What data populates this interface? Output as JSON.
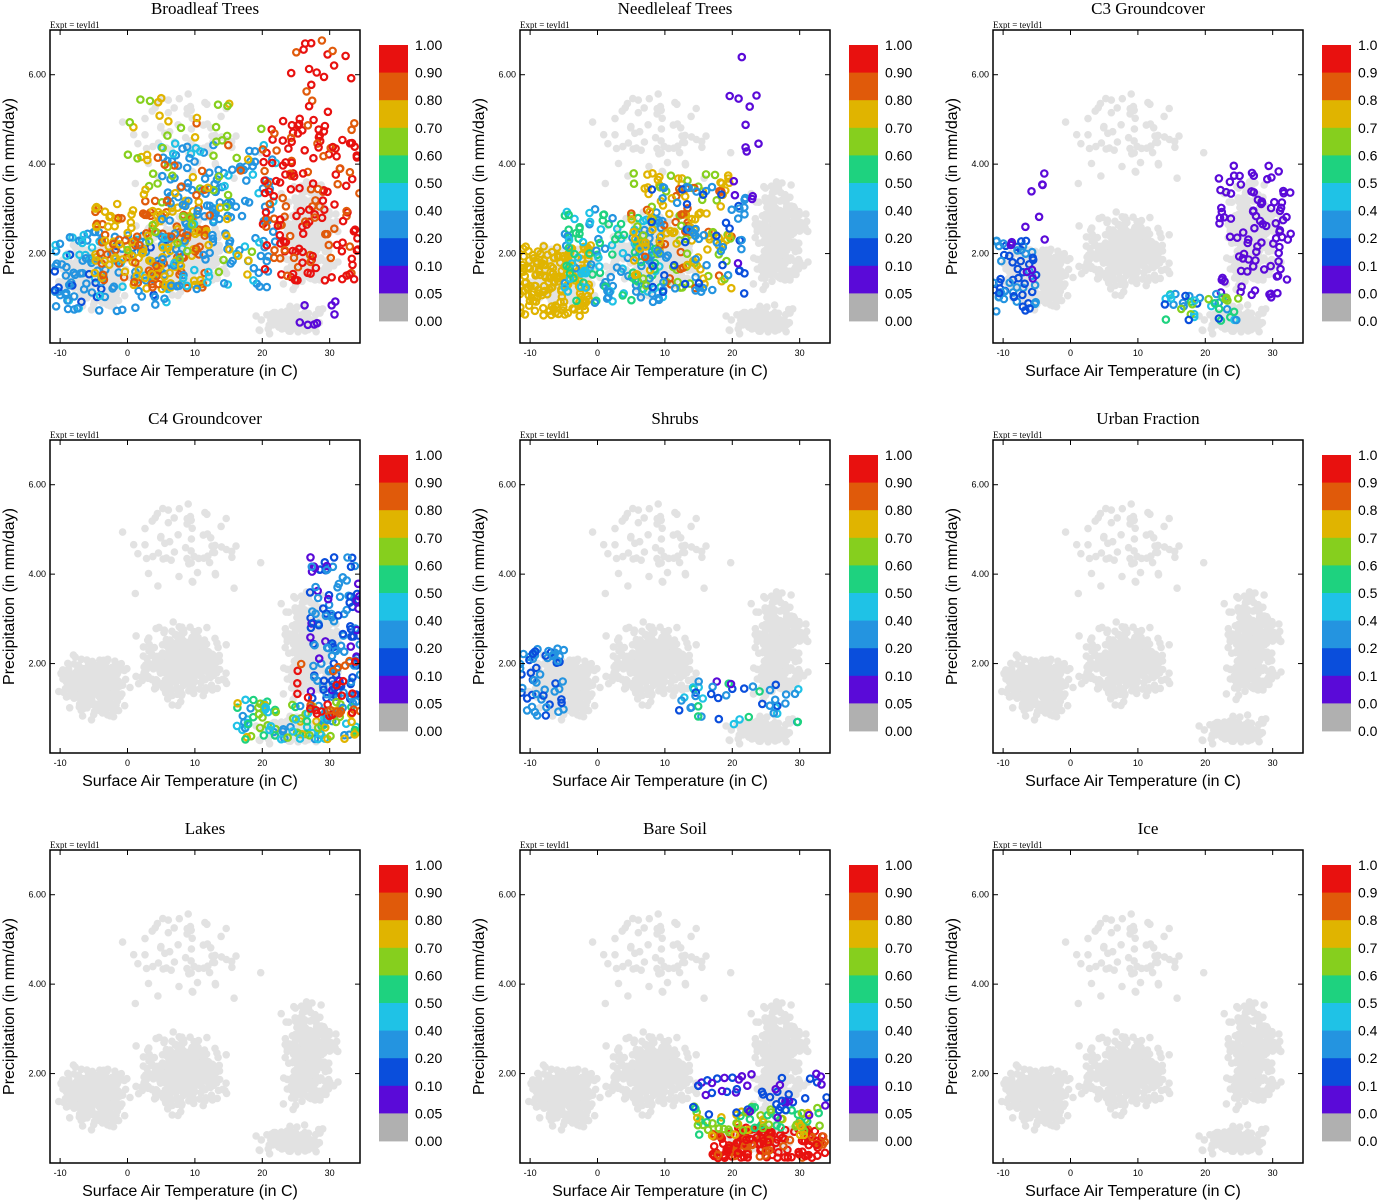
{
  "figure": {
    "expt_label": "Expt = teyId1",
    "xlabel": "Surface Air Temperature (in C)",
    "ylabel": "Precipitation (in mm/day)",
    "xlim": [
      -11.5,
      34.5
    ],
    "ylim": [
      0.0,
      7.0
    ],
    "x_ticks": [
      "-10",
      "0",
      "10",
      "20",
      "30"
    ],
    "x_tick_values": [
      -10,
      0,
      10,
      20,
      30
    ],
    "y_ticks": [
      "2.00",
      "4.00",
      "6.00"
    ],
    "y_tick_values": [
      2,
      4,
      6
    ],
    "colorbar": {
      "labels": [
        "1.00",
        "0.90",
        "0.80",
        "0.70",
        "0.60",
        "0.50",
        "0.40",
        "0.20",
        "0.10",
        "0.05",
        "0.00"
      ],
      "colors": [
        "#e8110f",
        "#e05a0a",
        "#e0b400",
        "#86cf1e",
        "#1ed27f",
        "#1fc2e6",
        "#2494e0",
        "#0a4edc",
        "#5a0ad8",
        "#b0b0b0"
      ]
    },
    "background_color": "#e2e2e2",
    "zero_fraction_color": "#b0b0b0"
  },
  "chart_data": [
    {
      "type": "scatter",
      "title": "Broadleaf Trees",
      "xlabel": "Surface Air Temperature (in C)",
      "ylabel": "Precipitation (in mm/day)",
      "xlim": [
        -11.5,
        34.5
      ],
      "ylim": [
        0,
        7
      ],
      "clusters": [
        {
          "x_range": [
            -11,
            6
          ],
          "y_range": [
            0.7,
            2.5
          ],
          "fraction_range": [
            0.15,
            0.45
          ],
          "count": 130
        },
        {
          "x_range": [
            -5,
            12
          ],
          "y_range": [
            1.2,
            3.2
          ],
          "fraction_range": [
            0.72,
            0.85
          ],
          "count": 170
        },
        {
          "x_range": [
            5,
            22
          ],
          "y_range": [
            1.2,
            4.5
          ],
          "fraction_range": [
            0.2,
            0.45
          ],
          "count": 160
        },
        {
          "x_range": [
            0,
            20
          ],
          "y_range": [
            1.5,
            5.5
          ],
          "fraction_range": [
            0.6,
            0.85
          ],
          "count": 90
        },
        {
          "x_range": [
            20,
            34.5
          ],
          "y_range": [
            1.4,
            5.0
          ],
          "fraction_range": [
            0.85,
            1.0
          ],
          "count": 170
        },
        {
          "x_range": [
            24,
            34
          ],
          "y_range": [
            5.0,
            6.8
          ],
          "fraction_range": [
            0.85,
            1.0
          ],
          "count": 20
        },
        {
          "x_range": [
            24,
            31
          ],
          "y_range": [
            0.4,
            1.0
          ],
          "fraction_range": [
            0.05,
            0.1
          ],
          "count": 8
        }
      ]
    },
    {
      "type": "scatter",
      "title": "Needleleaf Trees",
      "xlabel": "Surface Air Temperature (in C)",
      "ylabel": "Precipitation (in mm/day)",
      "xlim": [
        -11.5,
        34.5
      ],
      "ylim": [
        0,
        7
      ],
      "clusters": [
        {
          "x_range": [
            -11.5,
            -1
          ],
          "y_range": [
            0.6,
            2.2
          ],
          "fraction_range": [
            0.7,
            0.75
          ],
          "count": 160
        },
        {
          "x_range": [
            -5,
            10
          ],
          "y_range": [
            0.9,
            3.0
          ],
          "fraction_range": [
            0.3,
            0.6
          ],
          "count": 150
        },
        {
          "x_range": [
            5,
            20
          ],
          "y_range": [
            1.2,
            3.8
          ],
          "fraction_range": [
            0.65,
            0.85
          ],
          "count": 150
        },
        {
          "x_range": [
            8,
            22
          ],
          "y_range": [
            1.0,
            3.5
          ],
          "fraction_range": [
            0.15,
            0.3
          ],
          "count": 70
        },
        {
          "x_range": [
            19,
            25
          ],
          "y_range": [
            1.2,
            6.5
          ],
          "fraction_range": [
            0.05,
            0.1
          ],
          "count": 14
        }
      ]
    },
    {
      "type": "scatter",
      "title": "C3 Groundcover",
      "xlabel": "Surface Air Temperature (in C)",
      "ylabel": "Precipitation (in mm/day)",
      "xlim": [
        -11.5,
        34.5
      ],
      "ylim": [
        0,
        7
      ],
      "clusters": [
        {
          "x_range": [
            -11.5,
            -5
          ],
          "y_range": [
            0.7,
            2.3
          ],
          "fraction_range": [
            0.1,
            0.3
          ],
          "count": 60
        },
        {
          "x_range": [
            -9,
            -3
          ],
          "y_range": [
            1.0,
            3.8
          ],
          "fraction_range": [
            0.05,
            0.1
          ],
          "count": 12
        },
        {
          "x_range": [
            22,
            33
          ],
          "y_range": [
            1.0,
            4.0
          ],
          "fraction_range": [
            0.05,
            0.1
          ],
          "count": 90
        },
        {
          "x_range": [
            14,
            25
          ],
          "y_range": [
            0.5,
            1.1
          ],
          "fraction_range": [
            0.1,
            0.7
          ],
          "count": 40
        }
      ]
    },
    {
      "type": "scatter",
      "title": "C4 Groundcover",
      "xlabel": "Surface Air Temperature (in C)",
      "ylabel": "Precipitation (in mm/day)",
      "xlim": [
        -11.5,
        34.5
      ],
      "ylim": [
        0,
        7
      ],
      "clusters": [
        {
          "x_range": [
            27,
            34.5
          ],
          "y_range": [
            1.2,
            4.4
          ],
          "fraction_range": [
            0.05,
            0.3
          ],
          "count": 130
        },
        {
          "x_range": [
            16,
            34
          ],
          "y_range": [
            0.3,
            1.2
          ],
          "fraction_range": [
            0.3,
            0.75
          ],
          "count": 110
        },
        {
          "x_range": [
            25,
            34.5
          ],
          "y_range": [
            0.8,
            2.1
          ],
          "fraction_range": [
            0.85,
            1.0
          ],
          "count": 30
        }
      ]
    },
    {
      "type": "scatter",
      "title": "Shrubs",
      "xlabel": "Surface Air Temperature (in C)",
      "ylabel": "Precipitation (in mm/day)",
      "xlim": [
        -11.5,
        34.5
      ],
      "ylim": [
        0,
        7
      ],
      "clusters": [
        {
          "x_range": [
            -11.5,
            -5
          ],
          "y_range": [
            0.8,
            2.4
          ],
          "fraction_range": [
            0.1,
            0.4
          ],
          "count": 55
        },
        {
          "x_range": [
            12,
            30
          ],
          "y_range": [
            0.6,
            1.6
          ],
          "fraction_range": [
            0.05,
            0.6
          ],
          "count": 45
        }
      ]
    },
    {
      "type": "scatter",
      "title": "Urban Fraction",
      "xlabel": "Surface Air Temperature (in C)",
      "ylabel": "Precipitation (in mm/day)",
      "xlim": [
        -11.5,
        34.5
      ],
      "ylim": [
        0,
        7
      ],
      "clusters": []
    },
    {
      "type": "scatter",
      "title": "Lakes",
      "xlabel": "Surface Air Temperature (in C)",
      "ylabel": "Precipitation (in mm/day)",
      "xlim": [
        -11.5,
        34.5
      ],
      "ylim": [
        0,
        7
      ],
      "clusters": []
    },
    {
      "type": "scatter",
      "title": "Bare Soil",
      "xlabel": "Surface Air Temperature (in C)",
      "ylabel": "Precipitation (in mm/day)",
      "xlim": [
        -11.5,
        34.5
      ],
      "ylim": [
        0,
        7
      ],
      "clusters": [
        {
          "x_range": [
            17,
            34
          ],
          "y_range": [
            0.1,
            0.8
          ],
          "fraction_range": [
            0.85,
            1.0
          ],
          "count": 150
        },
        {
          "x_range": [
            14,
            34
          ],
          "y_range": [
            0.6,
            1.3
          ],
          "fraction_range": [
            0.5,
            0.8
          ],
          "count": 70
        },
        {
          "x_range": [
            14,
            34
          ],
          "y_range": [
            1.0,
            2.0
          ],
          "fraction_range": [
            0.05,
            0.2
          ],
          "count": 50
        }
      ]
    },
    {
      "type": "scatter",
      "title": "Ice",
      "xlabel": "Surface Air Temperature (in C)",
      "ylabel": "Precipitation (in mm/day)",
      "xlim": [
        -11.5,
        34.5
      ],
      "ylim": [
        0,
        7
      ],
      "clusters": []
    }
  ]
}
